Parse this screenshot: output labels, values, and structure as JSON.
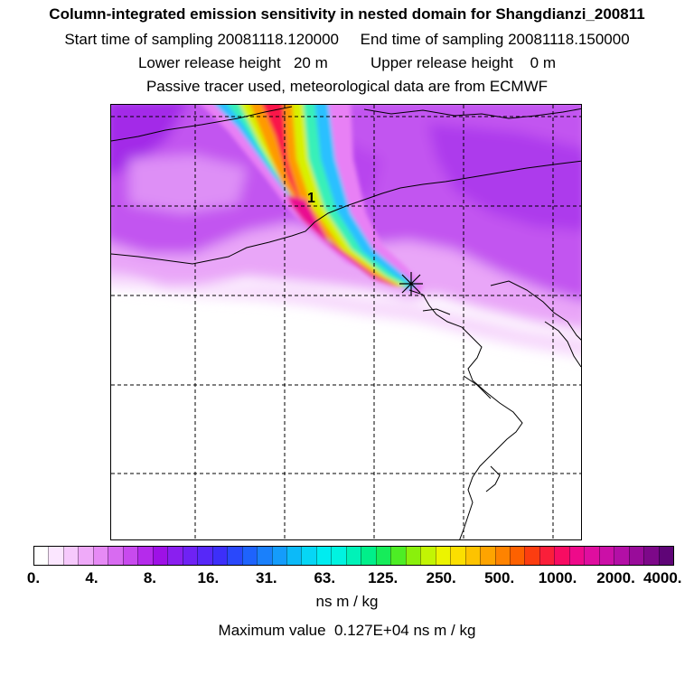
{
  "title": {
    "line1": "Column-integrated emission sensitivity in nested domain for Shangdianzi_200811",
    "line2": "Start time of sampling 20081118.120000     End time of sampling 20081118.150000",
    "line3": "Lower release height   20 m          Upper release height    0 m",
    "line4": "Passive tracer used, meteorological data are from ECMWF"
  },
  "map": {
    "point_label": "1"
  },
  "colorbar": {
    "ticks": [
      "0.",
      "4.",
      "8.",
      "16.",
      "31.",
      "63.",
      "125.",
      "250.",
      "500.",
      "1000.",
      "2000.",
      "4000."
    ],
    "colors": [
      "#ffffff",
      "#fbe6ff",
      "#f6c9fc",
      "#efaaf9",
      "#e68af5",
      "#d86bf1",
      "#c84aee",
      "#b52beb",
      "#9e11e6",
      "#8a1fef",
      "#6f22f4",
      "#5728f8",
      "#3d2ff9",
      "#2a48fb",
      "#1e63fc",
      "#1a80fb",
      "#149cfb",
      "#0cbaf8",
      "#06d6f5",
      "#00ecf0",
      "#00f3e0",
      "#00f2b8",
      "#00ef8a",
      "#16ec5a",
      "#4ded25",
      "#8af00c",
      "#c2f504",
      "#ecf400",
      "#fbdf00",
      "#fdc300",
      "#fea400",
      "#fe8300",
      "#fd6100",
      "#fc3d10",
      "#fa1f3a",
      "#f70c62",
      "#ee0a8a",
      "#df0e9f",
      "#cb10a7",
      "#b30fa6",
      "#990c9a",
      "#7d0889",
      "#5f0577"
    ],
    "units": "ns m / kg"
  },
  "max_value": "Maximum value  0.127E+04 ns m / kg"
}
